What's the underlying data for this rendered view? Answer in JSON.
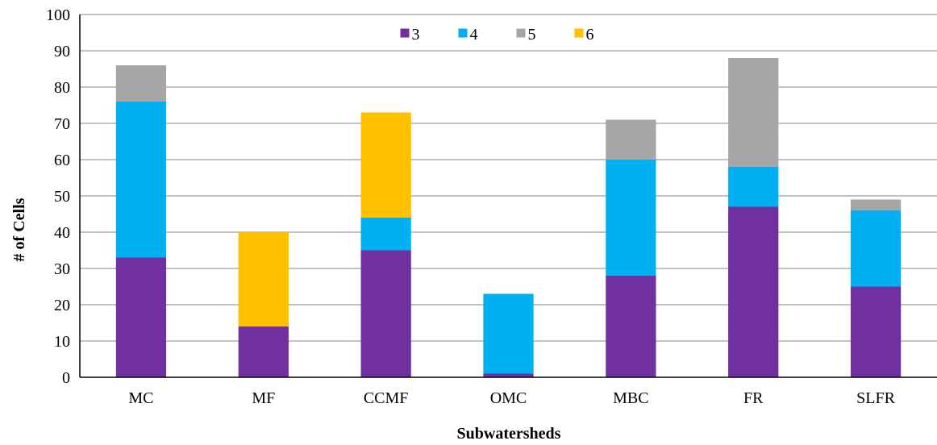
{
  "chart_data": {
    "type": "bar",
    "stacked": true,
    "title": "",
    "xlabel": "Subwatersheds",
    "ylabel": "# of Cells",
    "ylim": [
      0,
      100
    ],
    "yticks": [
      "0",
      "10",
      "20",
      "30",
      "40",
      "50",
      "60",
      "70",
      "80",
      "90",
      "100"
    ],
    "grid": true,
    "legend_position": "top-center",
    "categories": [
      "MC",
      "MF",
      "CCMF",
      "OMC",
      "MBC",
      "FR",
      "SLFR"
    ],
    "series": [
      {
        "name": "3",
        "color": "#7030A0",
        "values": [
          33,
          14,
          35,
          1,
          28,
          47,
          25
        ]
      },
      {
        "name": "4",
        "color": "#00B0F0",
        "values": [
          43,
          0,
          9,
          22,
          32,
          11,
          21
        ]
      },
      {
        "name": "5",
        "color": "#A6A6A6",
        "values": [
          10,
          0,
          0,
          0,
          11,
          30,
          3
        ]
      },
      {
        "name": "6",
        "color": "#FFC000",
        "values": [
          0,
          26,
          29,
          0,
          0,
          0,
          0
        ]
      }
    ]
  }
}
